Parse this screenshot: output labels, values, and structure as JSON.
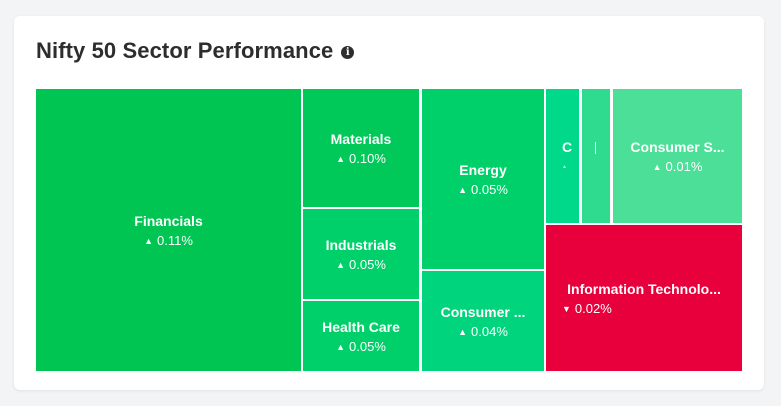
{
  "widget": {
    "title": "Nifty 50 Sector Performance",
    "info_icon": "info-icon"
  },
  "colors": {
    "dark_green": "#00c553",
    "mid_green": "#00d06a",
    "green": "#00d47c",
    "light_green": "#4cdf98",
    "aqua_green": "#00d88a",
    "red": "#e8003c"
  },
  "sectors": [
    {
      "name": "Financials",
      "change": "0.11%",
      "direction": "up",
      "arrow_icon": "triangle-up-icon"
    },
    {
      "name": "Materials",
      "change": "0.10%",
      "direction": "up",
      "arrow_icon": "triangle-up-icon"
    },
    {
      "name": "Industrials",
      "change": "0.05%",
      "direction": "up",
      "arrow_icon": "triangle-up-icon"
    },
    {
      "name": "Health Care",
      "change": "0.05%",
      "direction": "up",
      "arrow_icon": "triangle-up-icon"
    },
    {
      "name": "Energy",
      "change": "0.05%",
      "direction": "up",
      "arrow_icon": "triangle-up-icon"
    },
    {
      "name": "Consumer ...",
      "change": "0.04%",
      "direction": "up",
      "arrow_icon": "triangle-up-icon"
    },
    {
      "name": "C",
      "change": "",
      "direction": "up",
      "arrow_icon": "triangle-up-icon"
    },
    {
      "name": "",
      "change": "",
      "direction": "up",
      "arrow_icon": ""
    },
    {
      "name": "Consumer S...",
      "change": "0.01%",
      "direction": "up",
      "arrow_icon": "triangle-up-icon"
    },
    {
      "name": "Information Technolo...",
      "change": "0.02%",
      "direction": "down",
      "arrow_icon": "triangle-down-icon"
    }
  ]
}
